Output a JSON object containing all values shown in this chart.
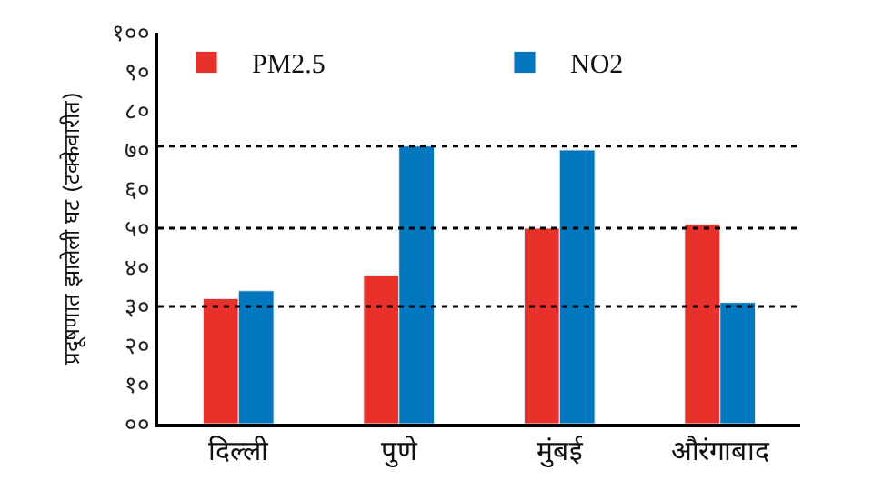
{
  "chart_data": {
    "type": "bar",
    "ylabel": "प्रदूषणात झालेली घट (टक्केवारीत)",
    "categories": [
      "दिल्ली",
      "पुणे",
      "मुंबई",
      "औरंगाबाद"
    ],
    "series": [
      {
        "name": "PM2.5",
        "color": "#e8312a",
        "values": [
          32,
          38,
          50,
          51
        ]
      },
      {
        "name": "NO2",
        "color": "#0277bd",
        "values": [
          34,
          71,
          70,
          31
        ]
      }
    ],
    "ylim": [
      0,
      100
    ],
    "yticks": [
      {
        "value": 0,
        "label": "००"
      },
      {
        "value": 10,
        "label": "१०"
      },
      {
        "value": 20,
        "label": "२०"
      },
      {
        "value": 30,
        "label": "३०"
      },
      {
        "value": 40,
        "label": "४०"
      },
      {
        "value": 50,
        "label": "५०"
      },
      {
        "value": 60,
        "label": "६०"
      },
      {
        "value": 70,
        "label": "७०"
      },
      {
        "value": 80,
        "label": "८०"
      },
      {
        "value": 90,
        "label": "९०"
      },
      {
        "value": 100,
        "label": "१००"
      }
    ],
    "ref_lines": [
      {
        "axis": "y",
        "value": 30,
        "color": "#000000",
        "line_style": "dotted"
      },
      {
        "axis": "y",
        "value": 50,
        "color": "#000000",
        "line_style": "dotted"
      },
      {
        "axis": "y",
        "value": 71,
        "color": "#000000",
        "line_style": "dotted"
      }
    ],
    "legend": "top"
  }
}
